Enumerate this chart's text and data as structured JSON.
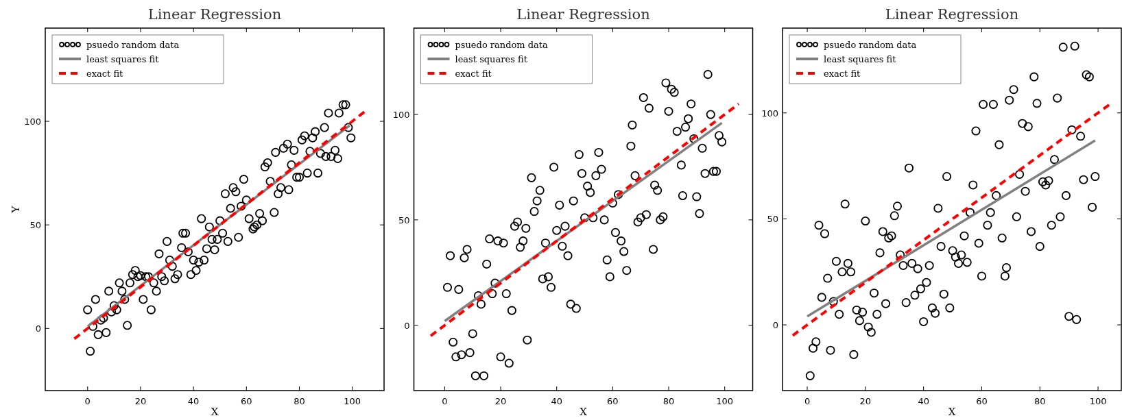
{
  "chart_data": [
    {
      "type": "scatter",
      "title": "Linear Regression",
      "xlabel": "X",
      "ylabel": "Y",
      "xlim": [
        -16,
        112
      ],
      "ylim": [
        -30,
        145
      ],
      "xticks": [
        0,
        20,
        40,
        60,
        80,
        100
      ],
      "yticks": [
        0,
        50,
        100
      ],
      "grid": false,
      "legend": "top left",
      "series": [
        {
          "name": "psuedo random data",
          "marker": "circle",
          "color": "#000000",
          "x": [
            0,
            1,
            2,
            3,
            4,
            5,
            6,
            7,
            8,
            9,
            10,
            11,
            12,
            13,
            14,
            15,
            16,
            17,
            18,
            19,
            20,
            21,
            22,
            23,
            24,
            25,
            26,
            27,
            28,
            29,
            30,
            31,
            32,
            33,
            34,
            35.5,
            36,
            37,
            38,
            39,
            40,
            41,
            42,
            43,
            44,
            45,
            46,
            47,
            48,
            49,
            50,
            51,
            52,
            53,
            54,
            55,
            56,
            57,
            58,
            59,
            60,
            61,
            62.5,
            63,
            64,
            65,
            66,
            67,
            68,
            69,
            70.5,
            71,
            72,
            73,
            74,
            75.5,
            76,
            77,
            78,
            79,
            80,
            81,
            82,
            83,
            84,
            85,
            86,
            87,
            88,
            89.5,
            90,
            91,
            92,
            93.5,
            94.5,
            95,
            96.5,
            97.5,
            98.5,
            99.5
          ],
          "values": [
            9,
            -11,
            1,
            14,
            -3,
            4,
            5,
            -2,
            18,
            8,
            11,
            9,
            22,
            18,
            14,
            1.5,
            22,
            26,
            28,
            25,
            25.5,
            14,
            25,
            25,
            9,
            22,
            18,
            36,
            25,
            23,
            42,
            33,
            30,
            24,
            26,
            39,
            46,
            46,
            37,
            26,
            33,
            28,
            32,
            53,
            33,
            38.5,
            49,
            43,
            38,
            43,
            52,
            46,
            65,
            42,
            58,
            68,
            66,
            44,
            59,
            72,
            62,
            53,
            48,
            49,
            50,
            55.5,
            52,
            78,
            80,
            71,
            56,
            85,
            65,
            68,
            87,
            89,
            67,
            79,
            86,
            73,
            73,
            91,
            93,
            75,
            85.5,
            92,
            95,
            75,
            84.5,
            97,
            83,
            104,
            83,
            86,
            82,
            104,
            108,
            108,
            97,
            92
          ]
        },
        {
          "name": "least squares fit",
          "type": "line",
          "marker": "none",
          "color": "#808080",
          "line_style": "solid",
          "x": [
            0,
            99
          ],
          "values": [
            1,
            98
          ]
        },
        {
          "name": "exact fit",
          "type": "line",
          "marker": "none",
          "color": "#ff0000",
          "line_style": "dashed",
          "x": [
            -5,
            105
          ],
          "values": [
            -5,
            105
          ]
        }
      ]
    },
    {
      "type": "scatter",
      "title": "Linear Regression",
      "xlabel": "X",
      "xlim": [
        -11,
        110
      ],
      "ylim": [
        -31,
        141
      ],
      "xticks": [
        0,
        20,
        40,
        60,
        80,
        100
      ],
      "yticks": [
        0,
        50,
        100
      ],
      "grid": false,
      "legend": "top left",
      "series": [
        {
          "name": "psuedo random data",
          "marker": "circle",
          "color": "#000000",
          "x": [
            1,
            2,
            3,
            4,
            5,
            6,
            7,
            8,
            9,
            10,
            11,
            12,
            13,
            14,
            15,
            16,
            17,
            18,
            19,
            20,
            21,
            22,
            23,
            24,
            25,
            26,
            27,
            28,
            29,
            29.5,
            31,
            32,
            33,
            34,
            35,
            36,
            37,
            38,
            39,
            40,
            41,
            42,
            43,
            44,
            45,
            46,
            47,
            48,
            49,
            50,
            51,
            52,
            53,
            54,
            55,
            56,
            57,
            58,
            59,
            60,
            61,
            62,
            63,
            64,
            65,
            66.5,
            67,
            68,
            69,
            70,
            71,
            72,
            73,
            74.5,
            75,
            76,
            77,
            78,
            79,
            80,
            81,
            82,
            83,
            84.5,
            85,
            86,
            87,
            88,
            89,
            90,
            91,
            92,
            93,
            94,
            95,
            96,
            97,
            98,
            99
          ],
          "values": [
            18,
            33,
            -8,
            -15,
            17,
            -14,
            32,
            36,
            -13,
            -4,
            -24,
            14,
            10,
            -24,
            29,
            41,
            15,
            20,
            40,
            -15,
            39,
            15,
            -18,
            7,
            47,
            49,
            37,
            40,
            46,
            -7,
            70,
            54,
            59,
            64,
            22,
            39,
            23,
            18,
            75,
            45,
            57,
            37.5,
            47,
            33,
            10,
            59,
            8,
            81,
            72,
            51,
            66,
            63,
            51,
            71,
            82,
            74,
            50,
            31,
            23,
            58,
            44,
            62,
            40,
            35,
            26,
            85,
            95,
            71,
            49,
            51,
            108,
            52.5,
            103,
            36,
            66.5,
            64,
            50,
            51.5,
            115,
            101.5,
            112,
            110.5,
            92,
            76,
            61.5,
            94,
            98,
            105,
            88.5,
            61,
            53,
            84,
            72,
            119,
            100,
            73,
            73,
            90,
            87
          ]
        },
        {
          "name": "least squares fit",
          "type": "line",
          "marker": "none",
          "color": "#808080",
          "line_style": "solid",
          "x": [
            0,
            99
          ],
          "values": [
            2,
            96
          ]
        },
        {
          "name": "exact fit",
          "type": "line",
          "marker": "none",
          "color": "#ff0000",
          "line_style": "dashed",
          "x": [
            -5,
            105
          ],
          "values": [
            -5,
            105
          ]
        }
      ]
    },
    {
      "type": "scatter",
      "title": "Linear Regression",
      "xlabel": "X",
      "xlim": [
        -8.5,
        108
      ],
      "ylim": [
        -31,
        140
      ],
      "xticks": [
        0,
        20,
        40,
        60,
        80,
        100
      ],
      "yticks": [
        0,
        50,
        100
      ],
      "grid": false,
      "legend": "top left",
      "series": [
        {
          "name": "psuedo random data",
          "marker": "circle",
          "color": "#000000",
          "x": [
            1,
            2,
            3,
            4,
            5,
            6,
            7,
            8,
            9,
            10,
            11,
            12,
            13,
            14,
            15,
            16,
            17,
            18,
            19,
            20,
            21,
            22,
            23,
            24,
            25,
            26,
            27,
            28,
            29,
            30,
            31,
            32,
            33,
            34,
            35,
            36,
            37,
            38,
            39,
            40,
            41,
            42,
            43,
            44,
            45,
            46,
            47,
            48,
            49,
            50,
            51,
            52,
            53,
            54,
            55,
            56,
            57,
            58,
            59,
            60,
            60.5,
            62,
            63,
            64,
            65,
            66,
            67,
            68,
            68.5,
            69.5,
            71,
            72,
            73,
            74,
            75,
            76,
            77,
            78,
            79,
            80,
            81,
            82,
            83,
            84,
            85,
            86,
            87,
            88,
            89,
            90,
            91,
            92,
            92.6,
            94,
            95,
            96,
            97,
            98,
            99
          ],
          "values": [
            -24,
            -11,
            -8,
            47,
            13,
            43,
            22,
            -12,
            11,
            30,
            5,
            25,
            57,
            29,
            25,
            -14,
            7,
            2,
            6,
            49,
            -1,
            -3.5,
            15,
            5,
            34,
            44,
            10,
            41,
            42,
            51.5,
            56,
            33,
            28,
            10.5,
            74,
            29,
            14,
            26.5,
            17,
            1.5,
            20,
            28,
            8,
            5.5,
            55,
            37,
            14.5,
            70,
            8,
            35,
            32,
            29,
            33,
            42,
            29.5,
            53,
            66,
            91.5,
            38.5,
            23,
            104,
            47,
            53,
            104,
            61,
            85,
            41,
            23,
            27,
            106,
            111,
            51,
            71,
            95,
            63,
            93.5,
            44,
            117,
            104.5,
            37,
            67.5,
            66,
            68,
            47,
            78,
            107,
            51,
            131,
            61,
            4,
            92,
            131.5,
            2.5,
            89,
            68.5,
            118,
            117,
            55.5,
            70
          ]
        },
        {
          "name": "least squares fit",
          "type": "line",
          "marker": "none",
          "color": "#808080",
          "line_style": "solid",
          "x": [
            0,
            99
          ],
          "values": [
            4,
            87
          ]
        },
        {
          "name": "exact fit",
          "type": "line",
          "marker": "none",
          "color": "#ff0000",
          "line_style": "dashed",
          "x": [
            -5,
            105
          ],
          "values": [
            -5,
            105
          ]
        }
      ]
    }
  ]
}
